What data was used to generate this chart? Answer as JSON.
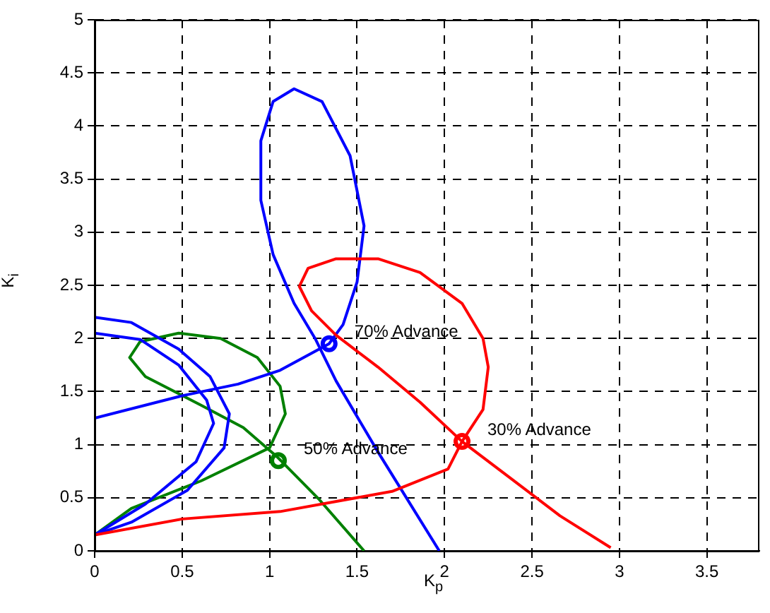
{
  "chart_data": {
    "type": "line",
    "xlabel": "K$_{p}$",
    "ylabel": "K$_{i}$",
    "xlim": [
      0,
      3.8
    ],
    "ylim": [
      0,
      5
    ],
    "xticks": [
      0,
      0.5,
      1,
      1.5,
      2,
      2.5,
      3,
      3.5
    ],
    "yticks": [
      0,
      0.5,
      1,
      1.5,
      2,
      2.5,
      3,
      3.5,
      4,
      4.5,
      5
    ],
    "grid": true,
    "legend": false,
    "marker": "none",
    "line_style": "solid",
    "series": [
      {
        "type": "line",
        "color": "#ff0000",
        "x": [
          0,
          0.5,
          1.06,
          1.7,
          2.02,
          2.1,
          2.22,
          2.25,
          2.22,
          2.1,
          1.86,
          1.62,
          1.38,
          1.22,
          1.17,
          1.24,
          1.38,
          1.62,
          1.86,
          2.1,
          2.34,
          2.66,
          2.95
        ],
        "values": [
          0.15,
          0.3,
          0.37,
          0.56,
          0.77,
          1.03,
          1.33,
          1.73,
          2.0,
          2.33,
          2.62,
          2.75,
          2.75,
          2.66,
          2.49,
          2.26,
          2.03,
          1.73,
          1.4,
          1.03,
          0.73,
          0.33,
          0.03
        ]
      },
      {
        "type": "line",
        "color": "#0000ff",
        "x": [
          0,
          0.5,
          0.82,
          1.06,
          1.34,
          1.42,
          1.5,
          1.54,
          1.46,
          1.3,
          1.14,
          1.02,
          0.95,
          0.95,
          1.02,
          1.14,
          1.26,
          1.38,
          1.62,
          1.97
        ],
        "values": [
          1.25,
          1.46,
          1.57,
          1.7,
          1.95,
          2.13,
          2.53,
          3.06,
          3.72,
          4.23,
          4.35,
          4.23,
          3.86,
          3.3,
          2.79,
          2.33,
          2.0,
          1.6,
          0.93,
          0
        ]
      },
      {
        "type": "line",
        "color": "#0000ff",
        "x": [
          0,
          0,
          0.21,
          0.48,
          0.66,
          0.77,
          0.74,
          0.53,
          0.21,
          0
        ],
        "values": [
          1.25,
          2.2,
          2.15,
          1.9,
          1.64,
          1.29,
          0.97,
          0.57,
          0.27,
          0.15
        ]
      },
      {
        "type": "line",
        "color": "#0000ff",
        "x": [
          0,
          0.26,
          0.48,
          0.64,
          0.68,
          0.58,
          0.29,
          0
        ],
        "values": [
          2.05,
          1.99,
          1.75,
          1.42,
          1.2,
          0.84,
          0.44,
          0.15
        ]
      },
      {
        "type": "line",
        "color": "#008000",
        "x": [
          0,
          0.21,
          0.61,
          1.0,
          1.09,
          1.06,
          0.93,
          0.72,
          0.48,
          0.26,
          0.2,
          0.29,
          0.61,
          0.85,
          1.04,
          1.28,
          1.54
        ],
        "values": [
          0.15,
          0.4,
          0.66,
          0.97,
          1.29,
          1.55,
          1.82,
          2.0,
          2.05,
          1.97,
          1.82,
          1.64,
          1.37,
          1.16,
          0.89,
          0.49,
          0
        ]
      },
      {
        "type": "scatter",
        "marker": "circle",
        "color": "#0000ff",
        "x": [
          1.34
        ],
        "values": [
          1.95
        ]
      },
      {
        "type": "scatter",
        "marker": "circle",
        "color": "#008000",
        "x": [
          1.05
        ],
        "values": [
          0.85
        ]
      },
      {
        "type": "scatter",
        "marker": "circle",
        "color": "#ff0000",
        "x": [
          2.1
        ],
        "values": [
          1.03
        ]
      }
    ],
    "annotations": [
      {
        "text": "70% Advance",
        "x": 1.34,
        "y": 1.95
      },
      {
        "text": "50% Advance",
        "x": 1.05,
        "y": 0.85
      },
      {
        "text": "30% Advance",
        "x": 2.1,
        "y": 1.03
      }
    ]
  }
}
